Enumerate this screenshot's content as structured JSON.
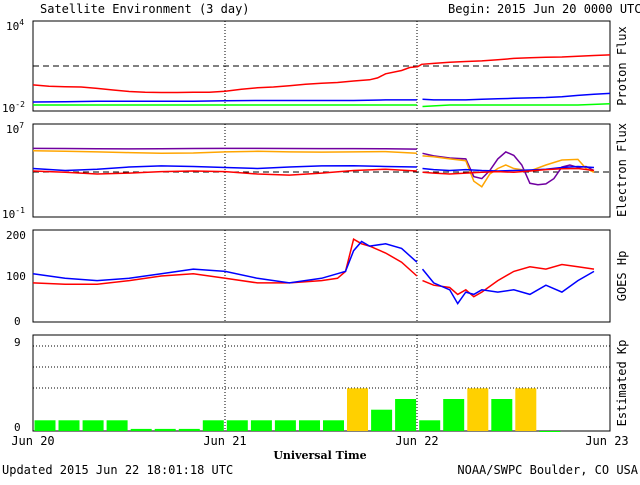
{
  "header": {
    "title": "Satellite Environment (3 day)",
    "begin_label": "Begin:",
    "begin_value": "2015 Jun 20 0000 UTC"
  },
  "footer": {
    "updated": "Updated 2015 Jun 22 18:01:18 UTC",
    "credit": "NOAA/SWPC Boulder, CO USA"
  },
  "x_axis": {
    "label": "Universal Time",
    "ticks": [
      "Jun 20",
      "Jun 21",
      "Jun 22",
      "Jun 23"
    ]
  },
  "panels": {
    "proton": {
      "ylabel": "Proton Flux",
      "top_tick": "10",
      "top_exp": "4",
      "bottom_tick": "10",
      "bottom_exp": "-2"
    },
    "electron": {
      "ylabel": "Electron Flux",
      "top_tick": "10",
      "top_exp": "7",
      "bottom_tick": "10",
      "bottom_exp": "-1"
    },
    "goes": {
      "ylabel": "GOES Hp",
      "ticks": [
        "200",
        "100",
        "0"
      ]
    },
    "kp": {
      "ylabel": "Estimated Kp",
      "ticks": [
        "9",
        "0"
      ]
    }
  },
  "colors": {
    "red": "#ff0000",
    "blue": "#0000ff",
    "green": "#00ff00",
    "orange": "#ffa500",
    "purple": "#7000a0",
    "yellow": "#ffd000"
  },
  "chart_data": [
    {
      "type": "line",
      "panel": "proton",
      "ylabel": "Proton Flux",
      "yscale": "log",
      "ylim": [
        0.01,
        10000
      ],
      "xlim_hours": [
        0,
        72
      ],
      "threshold": 10,
      "series": [
        {
          "color": "red",
          "x": [
            0,
            2,
            4,
            6,
            8,
            10,
            12,
            14,
            16,
            18,
            20,
            22,
            24,
            26,
            28,
            30,
            32,
            34,
            36,
            38,
            40,
            42,
            43,
            44,
            46,
            47,
            48,
            48.5,
            50,
            52,
            54,
            56,
            58,
            60,
            62,
            64,
            66,
            68,
            70,
            72
          ],
          "y": [
            0.55,
            0.45,
            0.42,
            0.4,
            0.32,
            0.25,
            0.2,
            0.18,
            0.17,
            0.17,
            0.18,
            0.18,
            0.21,
            0.28,
            0.35,
            0.4,
            0.48,
            0.6,
            0.7,
            0.8,
            1,
            1.2,
            1.6,
            3,
            5,
            8,
            9,
            13,
            15,
            18,
            20,
            22,
            26,
            32,
            35,
            38,
            40,
            45,
            50,
            55
          ]
        },
        {
          "color": "blue",
          "x": [
            0,
            4,
            8,
            12,
            16,
            20,
            24,
            28,
            32,
            36,
            40,
            44,
            47.9,
            48.6,
            50,
            54,
            56,
            58,
            60,
            62,
            64,
            66,
            68,
            70,
            72
          ],
          "y": [
            0.04,
            0.042,
            0.045,
            0.045,
            0.044,
            0.045,
            0.048,
            0.05,
            0.05,
            0.05,
            0.05,
            0.055,
            0.055,
            0.06,
            0.055,
            0.055,
            0.06,
            0.065,
            0.07,
            0.075,
            0.08,
            0.09,
            0.11,
            0.13,
            0.15
          ]
        },
        {
          "color": "green",
          "x": [
            0,
            4,
            8,
            12,
            16,
            20,
            24,
            28,
            32,
            36,
            40,
            44,
            47.9,
            48.6,
            52,
            56,
            60,
            64,
            68,
            72
          ],
          "y": [
            0.025,
            0.025,
            0.025,
            0.025,
            0.025,
            0.025,
            0.025,
            0.025,
            0.025,
            0.025,
            0.025,
            0.025,
            0.025,
            0.02,
            0.025,
            0.025,
            0.025,
            0.025,
            0.025,
            0.03
          ]
        }
      ]
    },
    {
      "type": "line",
      "panel": "electron",
      "ylabel": "Electron Flux",
      "yscale": "log",
      "ylim": [
        0.1,
        10000000
      ],
      "xlim_hours": [
        0,
        72
      ],
      "threshold": 1000,
      "series": [
        {
          "color": "purple",
          "x": [
            0,
            4,
            8,
            12,
            16,
            20,
            24,
            28,
            32,
            36,
            40,
            44,
            47.9,
            48.6,
            50,
            52,
            54,
            55,
            56,
            57,
            58,
            59,
            60,
            61,
            62,
            63,
            64,
            65,
            66,
            67,
            68,
            69,
            70
          ],
          "y": [
            80000,
            78000,
            75000,
            72000,
            75000,
            78000,
            80000,
            80000,
            78000,
            76000,
            76000,
            74000,
            70000,
            30000,
            18000,
            12000,
            10000,
            300,
            200,
            1000,
            10000,
            40000,
            20000,
            3000,
            80,
            60,
            70,
            200,
            2000,
            3000,
            1800,
            2200,
            1000
          ]
        },
        {
          "color": "orange",
          "x": [
            0,
            4,
            8,
            12,
            16,
            20,
            24,
            28,
            32,
            36,
            40,
            44,
            47.9,
            48.6,
            50,
            52,
            54,
            55,
            56,
            57,
            58,
            59,
            60,
            62,
            64,
            66,
            68,
            69,
            70
          ],
          "y": [
            50000,
            45000,
            40000,
            35000,
            30000,
            32000,
            40000,
            45000,
            40000,
            38000,
            40000,
            42000,
            30000,
            18000,
            15000,
            10000,
            7000,
            120,
            40,
            500,
            1500,
            3000,
            1500,
            900,
            3000,
            8000,
            9000,
            1500,
            700
          ]
        },
        {
          "color": "blue",
          "x": [
            0,
            4,
            8,
            12,
            16,
            20,
            24,
            28,
            32,
            36,
            40,
            44,
            47.9,
            48.6,
            50,
            52,
            54,
            56,
            58,
            60,
            62,
            64,
            66,
            68,
            70
          ],
          "y": [
            1500,
            1000,
            1300,
            2000,
            2500,
            2200,
            1800,
            1500,
            2000,
            2500,
            2600,
            2200,
            2000,
            1500,
            1200,
            1000,
            1200,
            1000,
            900,
            1000,
            1100,
            1300,
            1800,
            2200,
            1800
          ]
        },
        {
          "color": "red",
          "x": [
            0,
            4,
            8,
            12,
            16,
            20,
            24,
            28,
            32,
            36,
            40,
            44,
            47.9,
            48.6,
            50,
            52,
            54,
            56,
            58,
            60,
            62,
            64,
            66,
            68,
            70
          ],
          "y": [
            900,
            700,
            500,
            600,
            800,
            900,
            800,
            500,
            400,
            600,
            1000,
            1300,
            900,
            700,
            600,
            500,
            600,
            700,
            800,
            700,
            900,
            1200,
            1400,
            1500,
            1000
          ]
        }
      ]
    },
    {
      "type": "line",
      "panel": "goes",
      "ylabel": "GOES Hp",
      "ylim": [
        0,
        200
      ],
      "xlim_hours": [
        0,
        72
      ],
      "series": [
        {
          "color": "red",
          "x": [
            0,
            4,
            8,
            12,
            16,
            20,
            24,
            28,
            32,
            36,
            38,
            39,
            40,
            41,
            42,
            44,
            46,
            47.9,
            48.6,
            50,
            52,
            53,
            54,
            55,
            56,
            58,
            60,
            62,
            64,
            66,
            68,
            70
          ],
          "y": [
            85,
            82,
            82,
            90,
            100,
            105,
            95,
            85,
            85,
            90,
            95,
            110,
            180,
            170,
            165,
            150,
            130,
            100,
            90,
            80,
            75,
            60,
            70,
            55,
            65,
            90,
            110,
            120,
            115,
            125,
            120,
            115
          ]
        },
        {
          "color": "blue",
          "x": [
            0,
            4,
            8,
            12,
            16,
            20,
            24,
            28,
            32,
            36,
            38,
            39,
            40,
            41,
            42,
            44,
            46,
            47.9,
            48.6,
            50,
            52,
            53,
            54,
            55,
            56,
            58,
            60,
            62,
            64,
            66,
            68,
            70
          ],
          "y": [
            105,
            95,
            90,
            95,
            105,
            115,
            110,
            95,
            85,
            95,
            105,
            110,
            155,
            175,
            165,
            170,
            160,
            130,
            115,
            85,
            70,
            40,
            65,
            60,
            70,
            65,
            70,
            60,
            80,
            65,
            90,
            110
          ]
        }
      ]
    },
    {
      "type": "bar",
      "panel": "kp",
      "ylabel": "Estimated Kp",
      "ylim": [
        0,
        9
      ],
      "levels": [
        4,
        5
      ],
      "bar_width_hours": 3,
      "x_start_hours": [
        0,
        3,
        6,
        9,
        12,
        15,
        18,
        21,
        24,
        27,
        30,
        33,
        36,
        39,
        42,
        45,
        48,
        51,
        54,
        57,
        60,
        63
      ],
      "values": [
        1,
        1,
        1,
        1,
        0.2,
        0.2,
        0.2,
        1,
        1,
        1,
        1,
        1,
        1,
        4,
        2,
        3,
        1,
        3,
        4,
        3,
        4,
        0
      ],
      "colors": [
        "green",
        "green",
        "green",
        "green",
        "green",
        "green",
        "green",
        "green",
        "green",
        "green",
        "green",
        "green",
        "green",
        "yellow",
        "green",
        "green",
        "green",
        "green",
        "yellow",
        "green",
        "yellow",
        "green"
      ]
    }
  ]
}
